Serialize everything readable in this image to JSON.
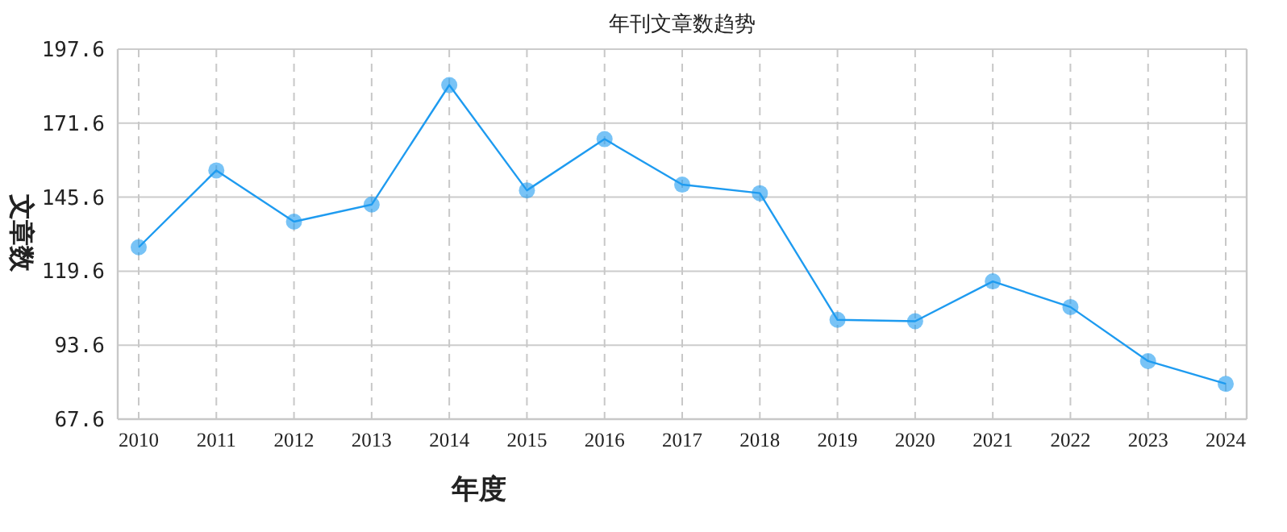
{
  "chart_data": {
    "type": "line",
    "title": "年刊文章数趋势",
    "xlabel": "年度",
    "ylabel": "文章数",
    "categories": [
      "2010",
      "2011",
      "2012",
      "2013",
      "2014",
      "2015",
      "2016",
      "2017",
      "2018",
      "2019",
      "2020",
      "2021",
      "2022",
      "2023",
      "2024"
    ],
    "series": [
      {
        "color": "#1e9bf0",
        "values": [
          128,
          155,
          137,
          143,
          185,
          148,
          166,
          150,
          147,
          102.5,
          102,
          116,
          107,
          88,
          80
        ]
      }
    ],
    "ylim": [
      67.6,
      197.6
    ],
    "yticks": [
      67.6,
      93.6,
      119.6,
      145.6,
      171.6,
      197.6
    ],
    "grid": true,
    "marker": "circle",
    "line_style": "solid"
  }
}
